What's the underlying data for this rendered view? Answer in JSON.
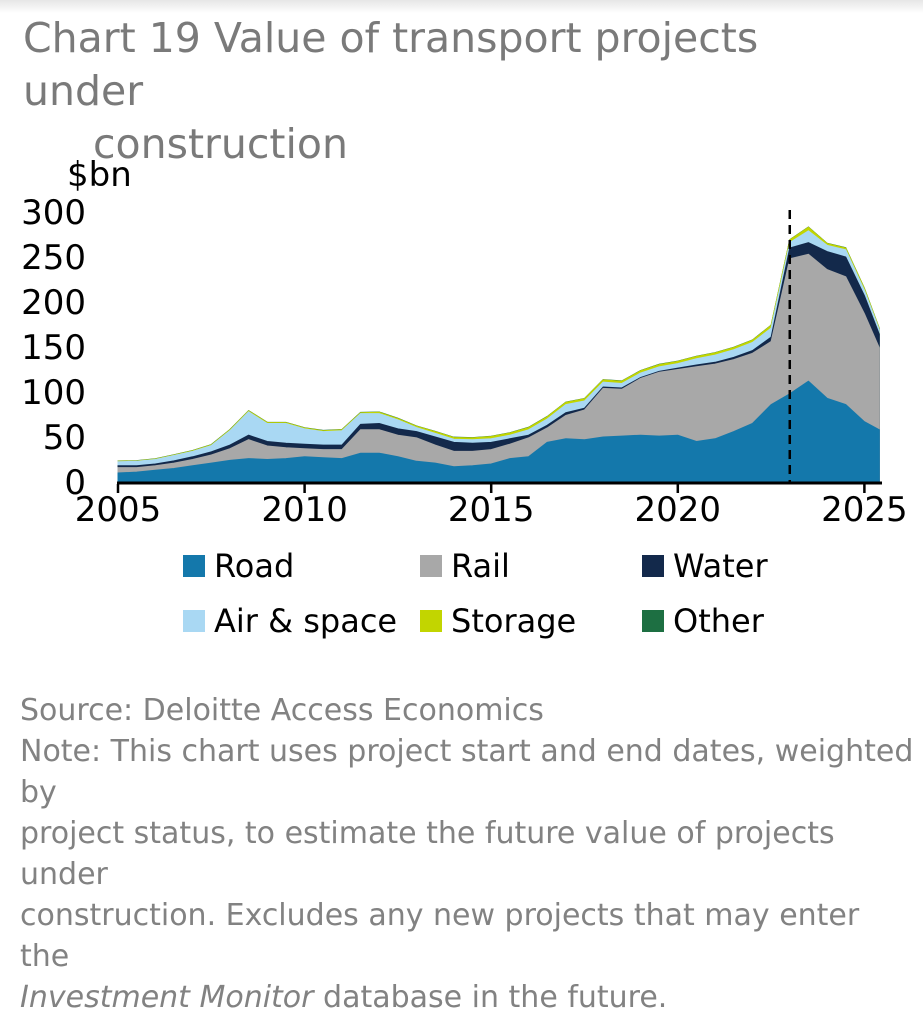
{
  "title": {
    "line1": "Chart 19 Value of transport projects under",
    "line2": "construction"
  },
  "footer": {
    "source": "Source: Deloitte Access Economics",
    "note_lines": [
      "Note: This chart uses project start and end dates, weighted by",
      "project status, to estimate the future value of projects under",
      "construction. Excludes any new projects that may enter the"
    ],
    "note_italic": "Investment Monitor",
    "note_end": " database in the future."
  },
  "chart_data": {
    "type": "area",
    "stacked": true,
    "title": "Chart 19 Value of transport projects under construction",
    "unit_label": "$bn",
    "ylim": [
      0,
      300
    ],
    "yticks": [
      0,
      50,
      100,
      150,
      200,
      250,
      300
    ],
    "xticks": [
      2005,
      2010,
      2015,
      2020,
      2025
    ],
    "dashed_line_x": 2023,
    "grid": false,
    "legend_position": "bottom",
    "axis_color": "#000000",
    "x": [
      2005,
      2005.5,
      2006,
      2006.5,
      2007,
      2007.5,
      2008,
      2008.5,
      2009,
      2009.5,
      2010,
      2010.5,
      2011,
      2011.5,
      2012,
      2012.5,
      2013,
      2013.5,
      2014,
      2014.5,
      2015,
      2015.5,
      2016,
      2016.5,
      2017,
      2017.5,
      2018,
      2018.5,
      2019,
      2019.5,
      2020,
      2020.5,
      2021,
      2021.5,
      2022,
      2022.5,
      2023,
      2023.5,
      2024,
      2024.5,
      2025,
      2025.4
    ],
    "series": [
      {
        "name": "Road",
        "color": "#1478ab",
        "values": [
          10,
          11,
          13,
          15,
          18,
          21,
          24,
          26,
          25,
          26,
          28,
          27,
          26,
          32,
          32,
          28,
          23,
          21,
          17,
          18,
          20,
          26,
          28,
          44,
          48,
          47,
          50,
          51,
          52,
          51,
          52,
          45,
          48,
          56,
          65,
          86,
          98,
          112,
          93,
          86,
          67,
          58
        ]
      },
      {
        "name": "Rail",
        "color": "#a8a8a8",
        "values": [
          6,
          5,
          5,
          6,
          7,
          9,
          13,
          21,
          15,
          12,
          9,
          9,
          10,
          26,
          26,
          24,
          26,
          20,
          17,
          16,
          16,
          16,
          21,
          16,
          26,
          33,
          54,
          52,
          63,
          71,
          73,
          83,
          83,
          80,
          78,
          70,
          150,
          141,
          143,
          142,
          120,
          91
        ]
      },
      {
        "name": "Water",
        "color": "#13294b",
        "values": [
          2,
          2,
          2,
          2.5,
          3,
          3.5,
          4,
          5,
          5,
          5,
          5,
          5,
          5,
          6,
          7,
          7,
          7,
          9,
          10,
          9,
          8,
          6,
          3,
          3,
          3,
          2,
          1.5,
          1.5,
          1,
          1,
          1.5,
          2,
          2,
          2.5,
          3,
          5,
          12,
          13,
          20,
          22,
          20,
          15
        ]
      },
      {
        "name": "Air & space",
        "color": "#a9d8f3",
        "values": [
          4.5,
          5,
          5,
          6,
          6,
          7,
          16,
          26,
          20,
          22,
          17,
          15,
          16,
          12,
          11,
          10,
          4.5,
          4,
          3.5,
          4,
          4,
          4,
          6,
          7,
          9,
          8,
          5.5,
          5,
          5,
          5,
          5,
          7,
          8,
          8.5,
          9,
          10,
          6,
          13,
          7,
          8,
          6,
          5
        ]
      },
      {
        "name": "Storage",
        "color": "#c2d500",
        "values": [
          0.5,
          0.5,
          0.5,
          0.5,
          0.7,
          0.8,
          1,
          1,
          1,
          1,
          1,
          1,
          1,
          1,
          1.5,
          1.5,
          1.5,
          2,
          2,
          2,
          2.5,
          2.5,
          2.5,
          2.5,
          2.5,
          2.5,
          2.5,
          2.5,
          2.5,
          2.5,
          2.5,
          2.5,
          2.5,
          2.5,
          2.5,
          3,
          3,
          4,
          2,
          2,
          2,
          1.5
        ]
      },
      {
        "name": "Other",
        "color": "#1d6f42",
        "values": [
          0.3,
          0.3,
          0.3,
          0.3,
          0.3,
          0.3,
          0.3,
          0.3,
          0.3,
          0.3,
          0.3,
          0.3,
          0.3,
          0.3,
          0.3,
          0.3,
          0.3,
          0.3,
          0.3,
          0.3,
          0.3,
          0.3,
          0.3,
          0.3,
          0.3,
          0.3,
          0.3,
          0.3,
          0.3,
          0.3,
          0.3,
          0.3,
          0.3,
          0.3,
          0.3,
          0.3,
          0.3,
          0.3,
          0.3,
          0.3,
          0.3,
          0.3
        ]
      }
    ]
  }
}
